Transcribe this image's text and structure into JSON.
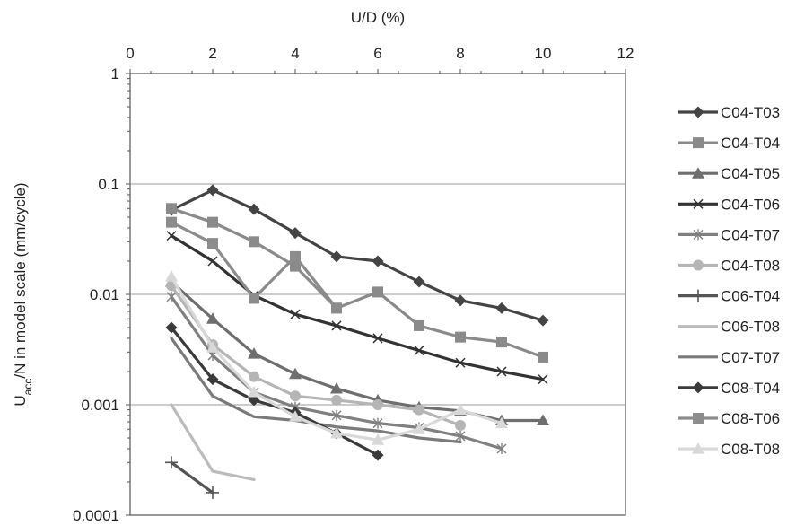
{
  "chart_data": {
    "type": "line",
    "xlabel": "U/D (%)",
    "ylabel_main": "U",
    "ylabel_sub": "acc",
    "ylabel_rest": "/N in model scale (mm/cycle)",
    "x_scale": "linear",
    "y_scale": "log",
    "xlim": [
      0,
      12
    ],
    "ylim": [
      0.0001,
      1
    ],
    "x_axis_position": "top",
    "x_ticks": [
      "0",
      "2",
      "4",
      "6",
      "8",
      "10",
      "12"
    ],
    "y_ticks": [
      "0.0001",
      "0.001",
      "0.01",
      "0.1",
      "1"
    ],
    "grid": "horizontal major lines",
    "legend_position": "right",
    "series": [
      {
        "name": "C04-T03",
        "color": "#444444",
        "marker": "diamond",
        "x": [
          1,
          2,
          3,
          4,
          5,
          6,
          7,
          8,
          9,
          10
        ],
        "y": [
          0.058,
          0.088,
          0.059,
          0.036,
          0.022,
          0.02,
          0.013,
          0.0088,
          0.0075,
          0.0058
        ]
      },
      {
        "name": "C04-T04",
        "color": "#8a8a8a",
        "marker": "square",
        "x": [
          1,
          2,
          3,
          4,
          5,
          6,
          7,
          8,
          9,
          10
        ],
        "y": [
          0.06,
          0.045,
          0.03,
          0.018,
          0.0075,
          0.0105,
          0.0052,
          0.0041,
          0.0037,
          0.0027
        ]
      },
      {
        "name": "C04-T05",
        "color": "#6e6e6e",
        "marker": "triangle",
        "x": [
          1,
          2,
          3,
          4,
          5,
          6,
          7,
          8,
          9,
          10
        ],
        "y": [
          0.013,
          0.006,
          0.0029,
          0.0019,
          0.0014,
          0.0011,
          0.00095,
          0.00088,
          0.00072,
          0.00072
        ]
      },
      {
        "name": "C04-T06",
        "color": "#333333",
        "marker": "x",
        "x": [
          1,
          2,
          3,
          4,
          5,
          6,
          7,
          8,
          9,
          10
        ],
        "y": [
          0.034,
          0.02,
          0.0098,
          0.0066,
          0.0052,
          0.004,
          0.0031,
          0.0024,
          0.002,
          0.0017
        ]
      },
      {
        "name": "C04-T07",
        "color": "#808080",
        "marker": "star",
        "x": [
          1,
          2,
          3,
          4,
          5,
          6,
          7,
          8,
          9
        ],
        "y": [
          0.0095,
          0.0028,
          0.0013,
          0.00095,
          0.0008,
          0.00068,
          0.00062,
          0.00052,
          0.0004
        ]
      },
      {
        "name": "C04-T08",
        "color": "#b5b5b5",
        "marker": "circle",
        "x": [
          1,
          2,
          3,
          4,
          5,
          6,
          7,
          8
        ],
        "y": [
          0.012,
          0.0035,
          0.0018,
          0.0012,
          0.0011,
          0.001,
          0.0009,
          0.00065
        ]
      },
      {
        "name": "C06-T04",
        "color": "#555555",
        "marker": "plus",
        "x": [
          1,
          2
        ],
        "y": [
          0.0003,
          0.00016
        ]
      },
      {
        "name": "C06-T08",
        "color": "#bbbbbb",
        "marker": "none",
        "x": [
          1,
          2,
          3
        ],
        "y": [
          0.001,
          0.00025,
          0.00021
        ]
      },
      {
        "name": "C07-T07",
        "color": "#7a7a7a",
        "marker": "none",
        "x": [
          1,
          2,
          3,
          4,
          5,
          6,
          7,
          8
        ],
        "y": [
          0.004,
          0.0012,
          0.00078,
          0.00072,
          0.00063,
          0.00058,
          0.0005,
          0.00046
        ]
      },
      {
        "name": "C08-T04",
        "color": "#3a3a3a",
        "marker": "diamond",
        "x": [
          1,
          2,
          3,
          4,
          5,
          6
        ],
        "y": [
          0.005,
          0.0017,
          0.0011,
          0.00085,
          0.00055,
          0.00035
        ]
      },
      {
        "name": "C08-T06",
        "color": "#8c8c8c",
        "marker": "square",
        "x": [
          1,
          2,
          3,
          4,
          5
        ],
        "y": [
          0.045,
          0.029,
          0.0092,
          0.022,
          0.0075
        ]
      },
      {
        "name": "C08-T08",
        "color": "#d8d8d8",
        "marker": "triangle",
        "x": [
          1,
          2,
          3,
          4,
          5,
          6,
          7,
          8,
          9
        ],
        "y": [
          0.0145,
          0.0033,
          0.0013,
          0.00078,
          0.00055,
          0.00048,
          0.0006,
          0.0009,
          0.00068
        ]
      }
    ]
  }
}
